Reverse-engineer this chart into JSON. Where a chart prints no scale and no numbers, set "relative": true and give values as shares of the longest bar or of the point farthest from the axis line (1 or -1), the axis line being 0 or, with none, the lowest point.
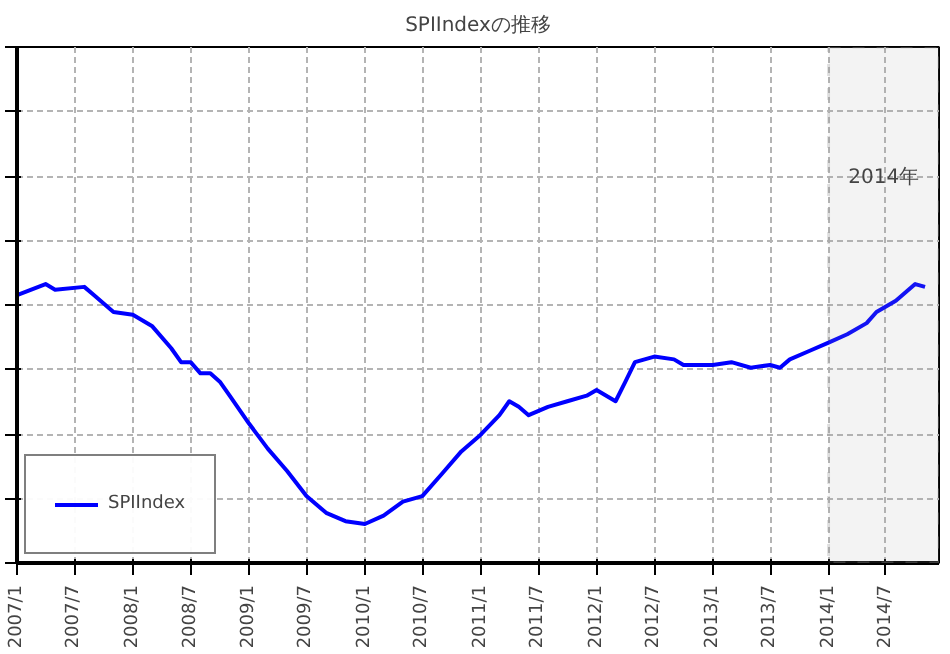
{
  "chart_data": {
    "type": "line",
    "title": "SPIIndexの推移",
    "relative": true,
    "x": [
      "2007-01",
      "2007-04",
      "2007-05",
      "2007-08",
      "2007-09",
      "2007-11",
      "2008-01",
      "2008-03",
      "2008-05",
      "2008-06",
      "2008-07",
      "2008-08",
      "2008-09",
      "2008-10",
      "2008-11",
      "2009-01",
      "2009-03",
      "2009-05",
      "2009-07",
      "2009-09",
      "2009-11",
      "2010-01",
      "2010-03",
      "2010-05",
      "2010-07",
      "2010-09",
      "2010-11",
      "2011-01",
      "2011-03",
      "2011-04",
      "2011-05",
      "2011-06",
      "2011-08",
      "2011-10",
      "2011-12",
      "2012-01",
      "2012-03",
      "2012-04",
      "2012-05",
      "2012-07",
      "2012-09",
      "2012-10",
      "2013-01",
      "2013-03",
      "2013-05",
      "2013-07",
      "2013-08",
      "2013-09",
      "2013-11",
      "2014-01",
      "2014-03",
      "2014-05",
      "2014-06",
      "2014-08",
      "2014-10",
      "2014-11"
    ],
    "series": [
      {
        "name": "SPIIndex",
        "color": "#0000ff",
        "values": [
          0.96,
          1.0,
          0.98,
          0.99,
          0.96,
          0.9,
          0.89,
          0.85,
          0.77,
          0.72,
          0.72,
          0.68,
          0.68,
          0.65,
          0.6,
          0.5,
          0.41,
          0.33,
          0.24,
          0.18,
          0.15,
          0.14,
          0.17,
          0.22,
          0.24,
          0.32,
          0.4,
          0.46,
          0.53,
          0.58,
          0.56,
          0.53,
          0.56,
          0.58,
          0.6,
          0.62,
          0.58,
          0.65,
          0.72,
          0.74,
          0.73,
          0.71,
          0.71,
          0.72,
          0.7,
          0.71,
          0.7,
          0.73,
          0.76,
          0.79,
          0.82,
          0.86,
          0.9,
          0.94,
          1.0,
          0.99
        ]
      }
    ],
    "xlim": [
      "2007-01",
      "2014-12-15"
    ],
    "xticks": [
      {
        "value": "2007-01",
        "label": "2007/1"
      },
      {
        "value": "2007-07",
        "label": "2007/7"
      },
      {
        "value": "2008-01",
        "label": "2008/1"
      },
      {
        "value": "2008-07",
        "label": "2008/7"
      },
      {
        "value": "2009-01",
        "label": "2009/1"
      },
      {
        "value": "2009-07",
        "label": "2009/7"
      },
      {
        "value": "2010-01",
        "label": "2010/1"
      },
      {
        "value": "2010-07",
        "label": "2010/7"
      },
      {
        "value": "2011-01",
        "label": "2011/1"
      },
      {
        "value": "2011-07",
        "label": "2011/7"
      },
      {
        "value": "2012-01",
        "label": "2012/1"
      },
      {
        "value": "2012-07",
        "label": "2012/7"
      },
      {
        "value": "2013-01",
        "label": "2013/1"
      },
      {
        "value": "2013-07",
        "label": "2013/7"
      },
      {
        "value": "2014-01",
        "label": "2014/1"
      },
      {
        "value": "2014-07",
        "label": "2014/7"
      }
    ],
    "bands": [
      {
        "axis": "x",
        "from": "2014-01",
        "to": "2014-12-15",
        "label": "2014年",
        "color": "#a0a0a0"
      }
    ],
    "grid": true,
    "legend": "bottom left",
    "tick_labels": "x",
    "line_style": "solid",
    "marker": "none"
  }
}
